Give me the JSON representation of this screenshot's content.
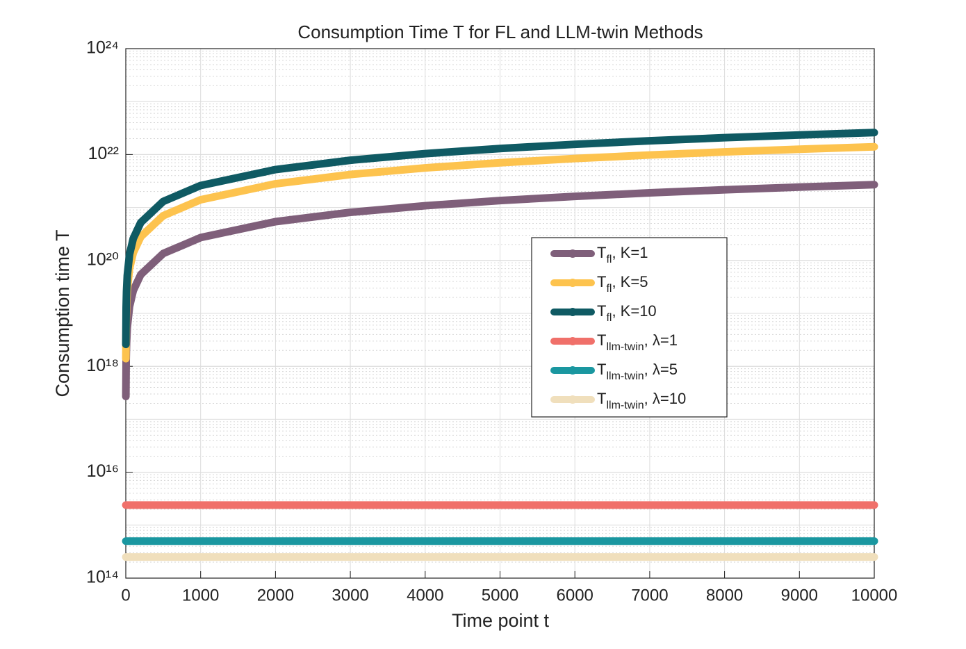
{
  "chart_data": {
    "type": "line",
    "title": "Consumption Time T for FL and LLM-twin Methods",
    "x_label": "Time point t",
    "y_label": "Consumption time T",
    "x": [
      1,
      5,
      10,
      20,
      50,
      100,
      200,
      500,
      1000,
      2000,
      3000,
      4000,
      5000,
      6000,
      7000,
      8000,
      9000,
      10000
    ],
    "series": [
      {
        "name": "Tfl, K=1",
        "color": "#7f5f7a",
        "values": [
          2.7e+17,
          1.35e+18,
          2.7e+18,
          5.4e+18,
          1.35e+19,
          2.7e+19,
          5.4e+19,
          1.35e+20,
          2.7e+20,
          5.4e+20,
          8.1e+20,
          1.08e+21,
          1.35e+21,
          1.62e+21,
          1.89e+21,
          2.16e+21,
          2.43e+21,
          2.7e+21
        ]
      },
      {
        "name": "Tfl, K=5",
        "color": "#fdc34e",
        "values": [
          1.4e+18,
          7e+18,
          1.4e+19,
          2.8e+19,
          7e+19,
          1.4e+20,
          2.8e+20,
          7e+20,
          1.4e+21,
          2.8e+21,
          4.2e+21,
          5.6e+21,
          7e+21,
          8.4e+21,
          9.8e+21,
          1.12e+22,
          1.26e+22,
          1.4e+22
        ]
      },
      {
        "name": "Tfl, K=10",
        "color": "#0f5a63",
        "values": [
          2.6e+18,
          1.3e+19,
          2.6e+19,
          5.2e+19,
          1.3e+20,
          2.6e+20,
          5.2e+20,
          1.3e+21,
          2.6e+21,
          5.2e+21,
          7.8e+21,
          1.04e+22,
          1.3e+22,
          1.56e+22,
          1.82e+22,
          2.08e+22,
          2.34e+22,
          2.6e+22
        ]
      },
      {
        "name": "Tllm-twin, λ=1",
        "color": "#f0706a",
        "values": [
          2400000000000000.0,
          2400000000000000.0,
          2400000000000000.0,
          2400000000000000.0,
          2400000000000000.0,
          2400000000000000.0,
          2400000000000000.0,
          2400000000000000.0,
          2400000000000000.0,
          2400000000000000.0,
          2400000000000000.0,
          2400000000000000.0,
          2400000000000000.0,
          2400000000000000.0,
          2400000000000000.0,
          2400000000000000.0,
          2400000000000000.0,
          2400000000000000.0
        ]
      },
      {
        "name": "Tllm-twin, λ=5",
        "color": "#1a97a0",
        "values": [
          500000000000000.0,
          500000000000000.0,
          500000000000000.0,
          500000000000000.0,
          500000000000000.0,
          500000000000000.0,
          500000000000000.0,
          500000000000000.0,
          500000000000000.0,
          500000000000000.0,
          500000000000000.0,
          500000000000000.0,
          500000000000000.0,
          500000000000000.0,
          500000000000000.0,
          500000000000000.0,
          500000000000000.0,
          500000000000000.0
        ]
      },
      {
        "name": "Tllm-twin, λ=10",
        "color": "#f0dfbc",
        "values": [
          250000000000000.0,
          250000000000000.0,
          250000000000000.0,
          250000000000000.0,
          250000000000000.0,
          250000000000000.0,
          250000000000000.0,
          250000000000000.0,
          250000000000000.0,
          250000000000000.0,
          250000000000000.0,
          250000000000000.0,
          250000000000000.0,
          250000000000000.0,
          250000000000000.0,
          250000000000000.0,
          250000000000000.0,
          250000000000000.0
        ]
      }
    ],
    "xlim": [
      0,
      10000
    ],
    "xticks": [
      0,
      1000,
      2000,
      3000,
      4000,
      5000,
      6000,
      7000,
      8000,
      9000,
      10000
    ],
    "ylim": [
      100000000000000.0,
      1e+24
    ],
    "yticks": [
      {
        "value": 100000000000000.0,
        "label": "10¹⁴"
      },
      {
        "value": 1e+16,
        "label": "10¹⁶"
      },
      {
        "value": 1e+18,
        "label": "10¹⁸"
      },
      {
        "value": 1e+20,
        "label": "10²⁰"
      },
      {
        "value": 1e+22,
        "label": "10²²"
      },
      {
        "value": 1e+24,
        "label": "10²⁴"
      }
    ],
    "log_y": true,
    "grid": true,
    "legend": "center-right"
  }
}
